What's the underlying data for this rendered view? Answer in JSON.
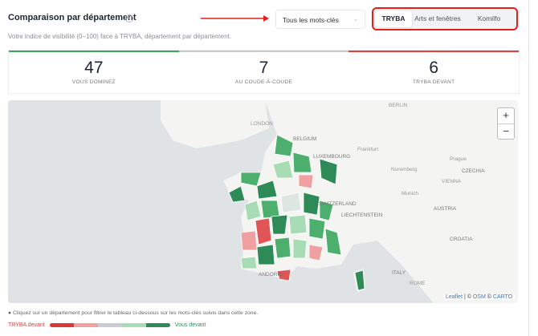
{
  "header": {
    "title": "Comparaison par département",
    "subtitle": "Votre indice de visibilité (0–100) face à TRYBA, département par département.",
    "dropdown": "Tous les mots-clés",
    "tabs": [
      "TRYBA",
      "Arts et fenêtres",
      "Komilfo"
    ]
  },
  "stats": [
    {
      "value": 47,
      "label": "VOUS DOMINEZ"
    },
    {
      "value": 7,
      "label": "AU COUDE-À-COUDE"
    },
    {
      "value": 6,
      "label": "TRYBA DEVANT"
    }
  ],
  "map": {
    "labels": [
      "LONDON",
      "BELGIUM",
      "LUXEMBOURG",
      "Frankfurt",
      "Nuremberg",
      "Prague",
      "CZECHIA",
      "Munich",
      "VIENNA",
      "AUSTRIA",
      "LIECHTENSTEIN",
      "SWITZERLAND",
      "CROATIA",
      "ITALY",
      "ROME",
      "ANDORRA",
      "BERLIN"
    ],
    "zoom_in": "+",
    "zoom_out": "−",
    "attribution": [
      "Leaflet",
      "| ©",
      "OSM",
      "©",
      "CARTO"
    ]
  },
  "footer": {
    "note": "Cliquez sur un département pour filtrer le tableau ci-dessous sur les mots-clés suivis dans cette zone.",
    "legend_left": "TRYBA devant",
    "legend_right": "Vous devant"
  }
}
